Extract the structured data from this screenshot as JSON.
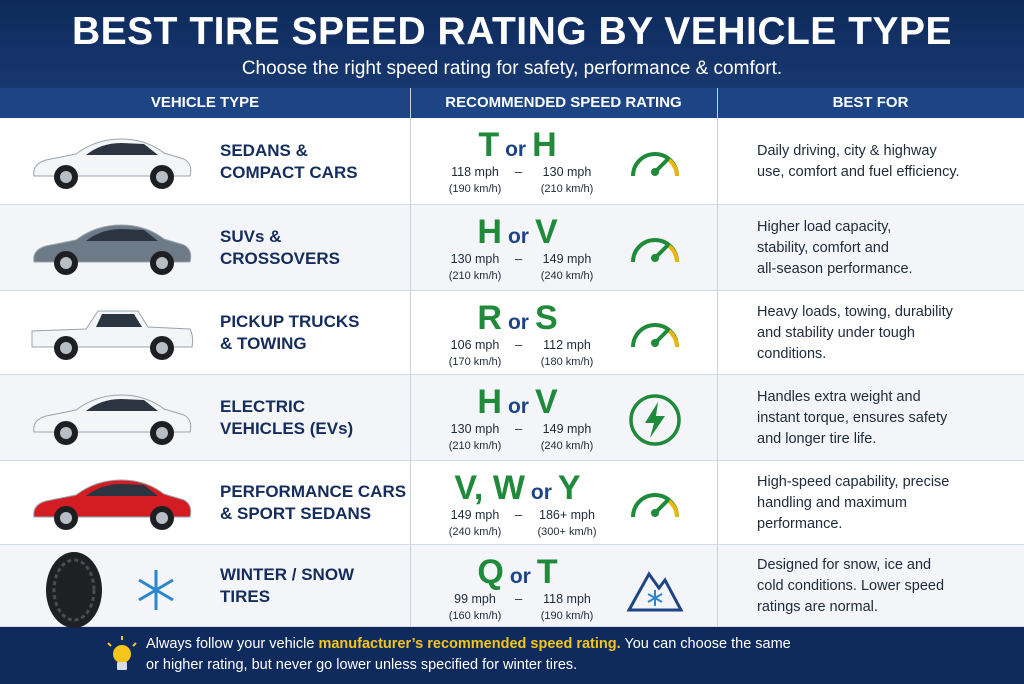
{
  "header": {
    "title": "BEST TIRE SPEED RATING BY VEHICLE TYPE",
    "subtitle": "Choose the right speed rating for safety, performance & comfort."
  },
  "table": {
    "columns": [
      "VEHICLE TYPE",
      "RECOMMENDED SPEED RATING",
      "BEST FOR"
    ],
    "range_separator": "–",
    "rows": [
      {
        "vehicle": [
          "SEDANS &",
          "COMPACT CARS"
        ],
        "letters": [
          "T",
          "H"
        ],
        "joiner": "or",
        "low": "118 mph",
        "low_kmh": "(190 km/h)",
        "high": "130 mph",
        "high_kmh": "(210 km/h)",
        "best_for": [
          "Daily driving, city & highway",
          "use, comfort and fuel efficiency."
        ]
      },
      {
        "vehicle": [
          "SUVs &",
          "CROSSOVERS"
        ],
        "letters": [
          "H",
          "V"
        ],
        "joiner": "or",
        "low": "130 mph",
        "low_kmh": "(210 km/h)",
        "high": "149 mph",
        "high_kmh": "(240 km/h)",
        "best_for": [
          "Higher load capacity,",
          "stability, comfort and",
          "all-season performance."
        ]
      },
      {
        "vehicle": [
          "PICKUP TRUCKS",
          "& TOWING"
        ],
        "letters": [
          "R",
          "S"
        ],
        "joiner": "or",
        "low": "106 mph",
        "low_kmh": "(170 km/h)",
        "high": "112 mph",
        "high_kmh": "(180 km/h)",
        "best_for": [
          "Heavy loads, towing, durability",
          "and stability under tough",
          "conditions."
        ]
      },
      {
        "vehicle": [
          "ELECTRIC",
          "VEHICLES (EVs)"
        ],
        "letters": [
          "H",
          "V"
        ],
        "joiner": "or",
        "low": "130 mph",
        "low_kmh": "(210 km/h)",
        "high": "149 mph",
        "high_kmh": "(240 km/h)",
        "best_for": [
          "Handles extra weight and",
          "instant torque, ensures safety",
          "and longer tire life."
        ]
      },
      {
        "vehicle": [
          "PERFORMANCE CARS",
          "& SPORT SEDANS"
        ],
        "letters": [
          "V, W",
          "Y"
        ],
        "joiner": "or",
        "low": "149 mph",
        "low_kmh": "(240 km/h)",
        "high": "186+ mph",
        "high_kmh": "(300+ km/h)",
        "best_for": [
          "High-speed capability, precise",
          "handling and maximum",
          "performance."
        ]
      },
      {
        "vehicle": [
          "WINTER / SNOW",
          "TIRES"
        ],
        "letters": [
          "Q",
          "T"
        ],
        "joiner": "or",
        "low": "99 mph",
        "low_kmh": "(160 km/h)",
        "high": "118 mph",
        "high_kmh": "(190 km/h)",
        "best_for": [
          "Designed for snow, ice and",
          "cold conditions. Lower speed",
          "ratings are normal."
        ]
      }
    ]
  },
  "footer": {
    "lines": [
      [
        "Always follow your vehicle ",
        "manufacturer’s recommended speed rating.",
        " You can choose the same"
      ],
      [
        "or higher rating, but never go lower unless specified for winter tires."
      ]
    ]
  }
}
